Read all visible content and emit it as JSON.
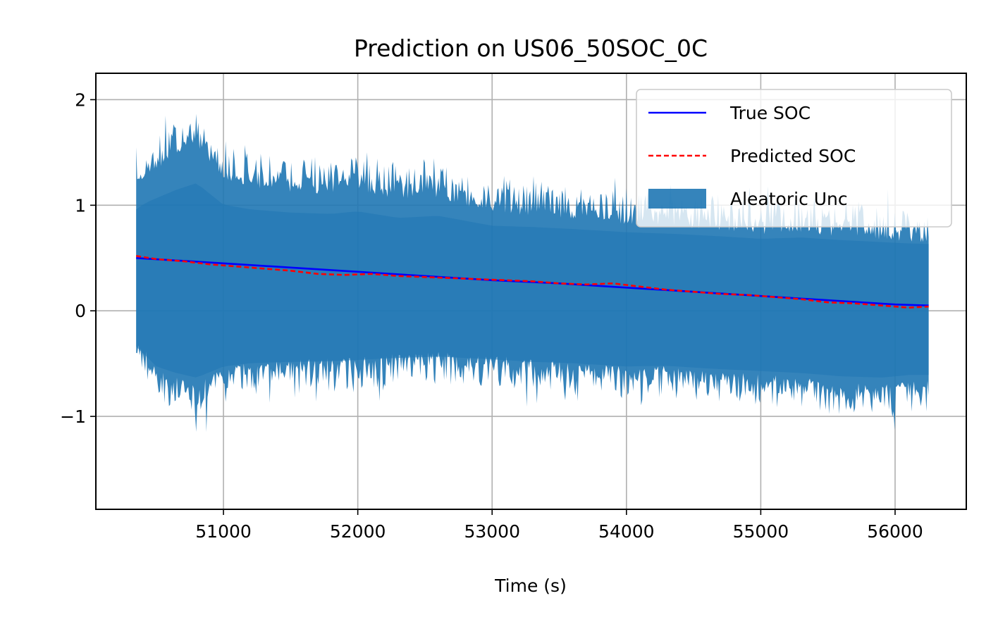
{
  "chart_data": {
    "type": "line",
    "title": "Prediction on US06_50SOC_0C",
    "xlabel": "Time (s)",
    "ylabel": "",
    "xlim": [
      50050,
      56530
    ],
    "ylim": [
      -1.88,
      2.25
    ],
    "xticks": [
      51000,
      52000,
      53000,
      54000,
      55000,
      56000
    ],
    "xtick_labels": [
      "51000",
      "52000",
      "53000",
      "54000",
      "55000",
      "56000"
    ],
    "yticks": [
      -1,
      0,
      1,
      2
    ],
    "ytick_labels": [
      "−1",
      "0",
      "1",
      "2"
    ],
    "grid": true,
    "legend_position": "top-right",
    "series": [
      {
        "name": "True SOC",
        "style": "solid",
        "color": "#0000ff",
        "x": [
          50350,
          51000,
          51500,
          52000,
          52500,
          53000,
          53500,
          54000,
          54500,
          55000,
          55500,
          56000,
          56250
        ],
        "y": [
          0.5,
          0.45,
          0.41,
          0.37,
          0.33,
          0.29,
          0.26,
          0.22,
          0.18,
          0.14,
          0.1,
          0.06,
          0.05
        ]
      },
      {
        "name": "Predicted SOC",
        "style": "dashed",
        "color": "#ff0000",
        "x": [
          50350,
          50500,
          50700,
          50900,
          51100,
          51300,
          51500,
          51700,
          51900,
          52100,
          52300,
          52500,
          52700,
          52900,
          53100,
          53300,
          53500,
          53700,
          53900,
          54100,
          54300,
          54500,
          54700,
          54900,
          55100,
          55300,
          55500,
          55700,
          55900,
          56100,
          56250
        ],
        "y": [
          0.52,
          0.49,
          0.47,
          0.44,
          0.42,
          0.4,
          0.38,
          0.35,
          0.34,
          0.35,
          0.33,
          0.32,
          0.31,
          0.3,
          0.29,
          0.28,
          0.26,
          0.25,
          0.26,
          0.23,
          0.2,
          0.18,
          0.16,
          0.15,
          0.13,
          0.11,
          0.08,
          0.07,
          0.05,
          0.03,
          0.04
        ]
      }
    ],
    "band": {
      "name": "Aleatoric Unc",
      "color": "#1f77b4",
      "x": [
        50350,
        50420,
        50500,
        50650,
        50800,
        51000,
        51200,
        51500,
        51800,
        52000,
        52300,
        52600,
        53000,
        53300,
        53600,
        54000,
        54300,
        54600,
        55000,
        55300,
        55600,
        55900,
        56100,
        56250
      ],
      "upper": [
        1.55,
        1.65,
        1.72,
        1.85,
        1.95,
        1.62,
        1.55,
        1.5,
        1.48,
        1.52,
        1.42,
        1.45,
        1.3,
        1.28,
        1.25,
        1.2,
        1.18,
        1.15,
        1.1,
        1.12,
        1.08,
        1.05,
        1.03,
        1.02
      ],
      "lower": [
        -0.55,
        -0.68,
        -0.85,
        -0.95,
        -1.02,
        -0.85,
        -0.8,
        -0.78,
        -0.77,
        -0.75,
        -0.72,
        -0.7,
        -0.74,
        -0.78,
        -0.8,
        -0.85,
        -0.84,
        -0.88,
        -0.92,
        -0.95,
        -1.0,
        -1.02,
        -0.98,
        -0.98
      ]
    }
  }
}
